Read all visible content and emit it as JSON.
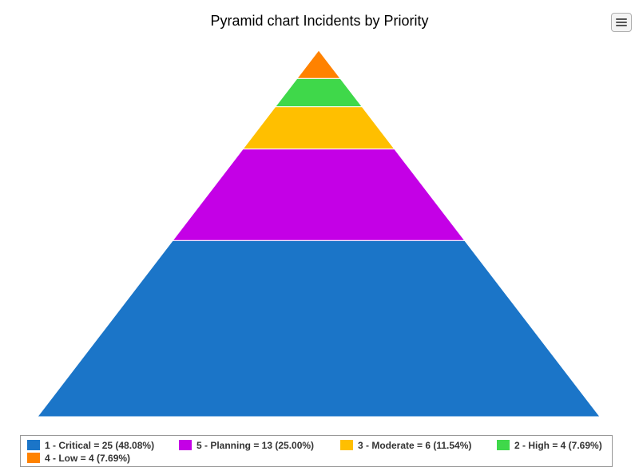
{
  "chart_data": {
    "type": "pyramid",
    "title": "Pyramid chart Incidents by Priority",
    "legend_position": "bottom",
    "segments_bottom_to_top": [
      {
        "name": "1 - Critical",
        "value": 25,
        "percent": "48.08%",
        "color": "#1b75c8",
        "legend_label": "1 - Critical = 25 (48.08%)"
      },
      {
        "name": "5 - Planning",
        "value": 13,
        "percent": "25.00%",
        "color": "#c400e6",
        "legend_label": "5 - Planning = 13 (25.00%)"
      },
      {
        "name": "3 - Moderate",
        "value": 6,
        "percent": "11.54%",
        "color": "#ffbf00",
        "legend_label": "3 - Moderate = 6 (11.54%)"
      },
      {
        "name": "2 - High",
        "value": 4,
        "percent": "7.69%",
        "color": "#3fd84a",
        "legend_label": "2 - High = 4 (7.69%)"
      },
      {
        "name": "4 - Low",
        "value": 4,
        "percent": "7.69%",
        "color": "#ff8200",
        "legend_label": "4 - Low = 4 (7.69%)"
      }
    ]
  },
  "toolbar": {
    "menu_icon": "hamburger-menu-icon"
  }
}
